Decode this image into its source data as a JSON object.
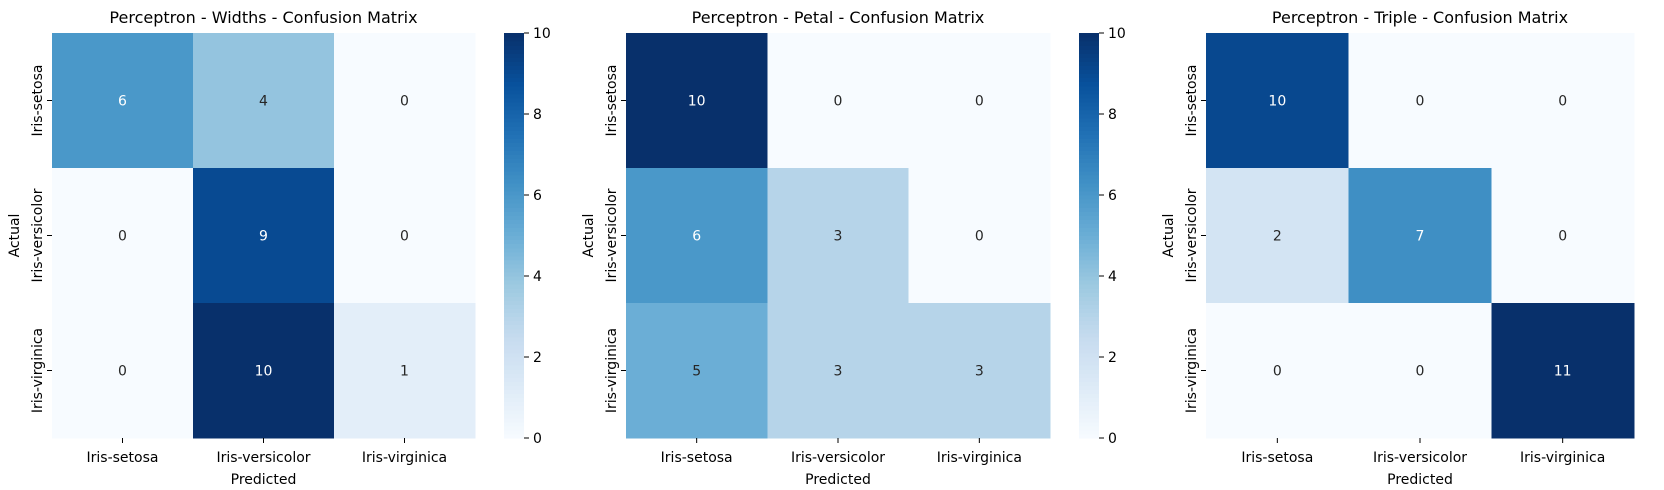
{
  "chart_data": [
    {
      "type": "heatmap",
      "title": "Perceptron - Widths - Confusion Matrix",
      "xlabel": "Predicted",
      "ylabel": "Actual",
      "x_categories": [
        "Iris-setosa",
        "Iris-versicolor",
        "Iris-virginica"
      ],
      "y_categories": [
        "Iris-setosa",
        "Iris-versicolor",
        "Iris-virginica"
      ],
      "values": [
        [
          6,
          4,
          0
        ],
        [
          0,
          9,
          0
        ],
        [
          0,
          10,
          1
        ]
      ],
      "colorbar": {
        "min": 0,
        "max": 10,
        "ticks": [
          0,
          2,
          4,
          6,
          8,
          10
        ]
      },
      "colormap": "Blues"
    },
    {
      "type": "heatmap",
      "title": "Perceptron - Petal - Confusion Matrix",
      "xlabel": "Predicted",
      "ylabel": "Actual",
      "x_categories": [
        "Iris-setosa",
        "Iris-versicolor",
        "Iris-virginica"
      ],
      "y_categories": [
        "Iris-setosa",
        "Iris-versicolor",
        "Iris-virginica"
      ],
      "values": [
        [
          10,
          0,
          0
        ],
        [
          6,
          3,
          0
        ],
        [
          5,
          3,
          3
        ]
      ],
      "colorbar": {
        "min": 0,
        "max": 10,
        "ticks": [
          0,
          2,
          4,
          6,
          8,
          10
        ]
      },
      "colormap": "Blues"
    },
    {
      "type": "heatmap",
      "title": "Perceptron - Triple - Confusion Matrix",
      "xlabel": "Predicted",
      "ylabel": "Actual",
      "x_categories": [
        "Iris-setosa",
        "Iris-versicolor",
        "Iris-virginica"
      ],
      "y_categories": [
        "Iris-setosa",
        "Iris-versicolor",
        "Iris-virginica"
      ],
      "values": [
        [
          10,
          0,
          0
        ],
        [
          2,
          7,
          0
        ],
        [
          0,
          0,
          11
        ]
      ],
      "colorbar": null,
      "colormap": "Blues"
    }
  ]
}
